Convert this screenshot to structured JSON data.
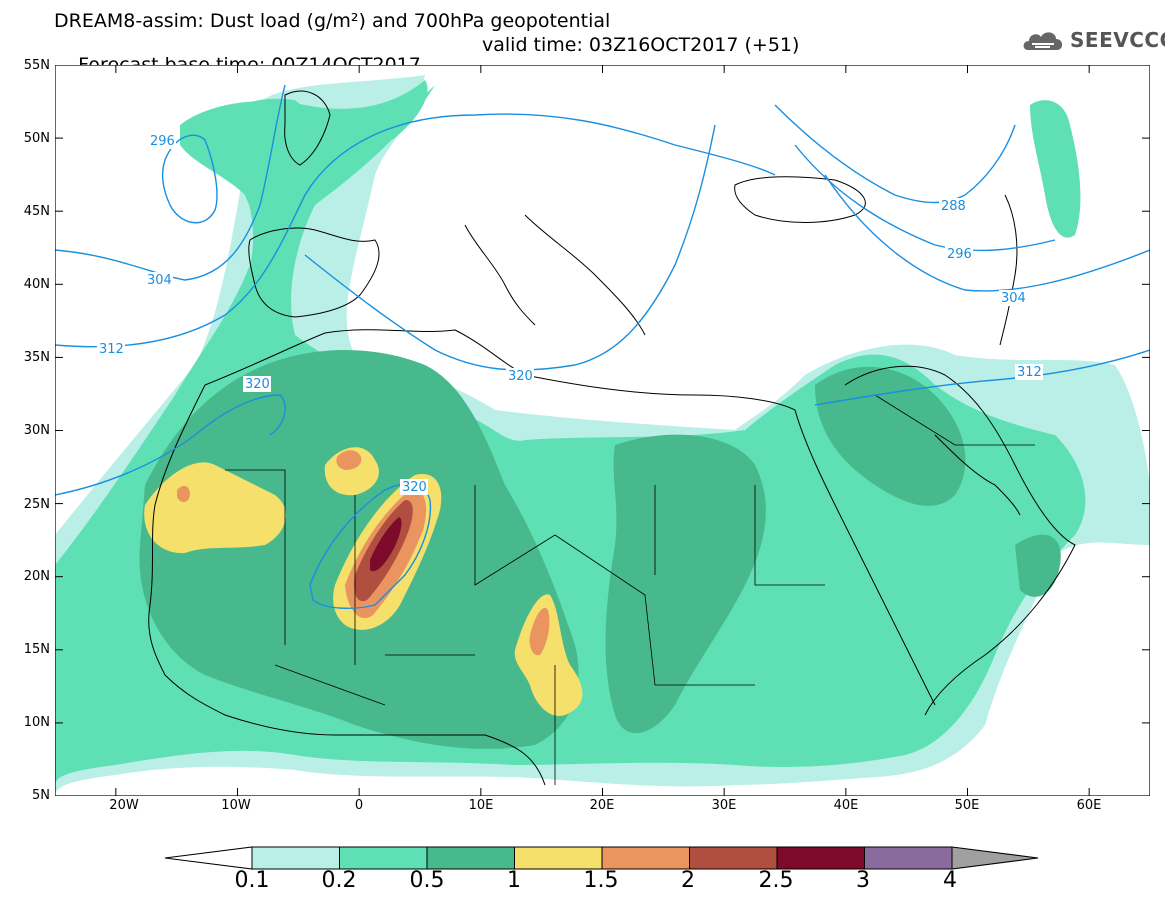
{
  "header": {
    "title_line1": "DREAM8-assim: Dust load (g/m²) and 700hPa geopotential",
    "forecast_base": "Forecast base time: 00Z14OCT2017",
    "valid_time": "valid time: 03Z16OCT2017 (+51)"
  },
  "logo": {
    "text": "SEEVCCC",
    "icon": "cloud-logo-icon"
  },
  "map": {
    "lon_range": [
      -25,
      65
    ],
    "lat_range": [
      5,
      55
    ],
    "lat_labels": [
      "55N",
      "50N",
      "45N",
      "40N",
      "35N",
      "30N",
      "25N",
      "20N",
      "15N",
      "10N",
      "5N"
    ],
    "lon_labels": [
      "20W",
      "10W",
      "0",
      "10E",
      "20E",
      "30E",
      "40E",
      "50E",
      "60E"
    ],
    "contour_labels": [
      "296",
      "304",
      "312",
      "320",
      "288",
      "296",
      "304",
      "312",
      "320",
      "320"
    ],
    "contour_color": "#1a8fe0",
    "dust_colors": {
      "0.1": "#b9efe7",
      "0.2": "#5ee0b4",
      "0.5": "#47b98d",
      "1": "#f4e06a",
      "1.5": "#ea9460",
      "2": "#b04f3f",
      "2.5": "#7d0a2a",
      "3": "#8b6b9e",
      "4": "#a0a0a0"
    }
  },
  "colorbar": {
    "labels": [
      "0.1",
      "0.2",
      "0.5",
      "1",
      "1.5",
      "2",
      "2.5",
      "3",
      "4"
    ],
    "colors": [
      "#b9efe7",
      "#5ee0b4",
      "#47b98d",
      "#f4e06a",
      "#ea9460",
      "#b04f3f",
      "#7d0a2a",
      "#8b6b9e",
      "#a0a0a0"
    ]
  }
}
